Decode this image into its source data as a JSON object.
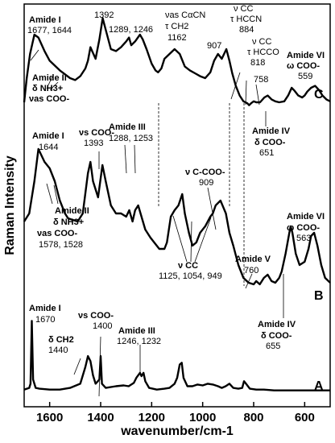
{
  "chart_data": {
    "type": "line",
    "xlabel": "wavenumber/cm-1",
    "ylabel": "Raman Intensity",
    "x_axis": {
      "reversed": true,
      "range": [
        1700,
        500
      ],
      "ticks": [
        1600,
        1400,
        1200,
        1000,
        800,
        600
      ]
    },
    "grid": false,
    "series": [
      {
        "name": "A",
        "x": [
          1700,
          1680,
          1675,
          1670,
          1665,
          1655,
          1640,
          1600,
          1560,
          1520,
          1480,
          1460,
          1450,
          1440,
          1430,
          1420,
          1405,
          1400,
          1395,
          1380,
          1340,
          1310,
          1290,
          1270,
          1260,
          1246,
          1240,
          1232,
          1225,
          1210,
          1180,
          1150,
          1130,
          1110,
          1100,
          1090,
          1082,
          1075,
          1060,
          1040,
          1020,
          1000,
          980,
          960,
          940,
          925,
          910,
          895,
          880,
          860,
          845,
          838,
          830,
          815,
          790,
          760,
          720,
          680,
          640,
          600,
          560,
          520,
          500
        ],
        "y": [
          0.08,
          0.1,
          0.15,
          0.9,
          0.2,
          0.1,
          0.09,
          0.08,
          0.08,
          0.1,
          0.15,
          0.35,
          0.48,
          0.42,
          0.25,
          0.15,
          0.2,
          0.48,
          0.15,
          0.1,
          0.12,
          0.13,
          0.12,
          0.16,
          0.22,
          0.28,
          0.24,
          0.28,
          0.18,
          0.1,
          0.08,
          0.09,
          0.1,
          0.15,
          0.22,
          0.38,
          0.4,
          0.22,
          0.12,
          0.12,
          0.14,
          0.13,
          0.15,
          0.14,
          0.12,
          0.1,
          0.12,
          0.15,
          0.1,
          0.09,
          0.1,
          0.18,
          0.15,
          0.09,
          0.08,
          0.08,
          0.07,
          0.07,
          0.07,
          0.07,
          0.07,
          0.07,
          0.07
        ]
      },
      {
        "name": "B",
        "x": [
          1700,
          1680,
          1660,
          1644,
          1620,
          1600,
          1580,
          1560,
          1540,
          1528,
          1510,
          1490,
          1470,
          1450,
          1440,
          1430,
          1410,
          1393,
          1380,
          1360,
          1340,
          1320,
          1300,
          1288,
          1275,
          1265,
          1253,
          1240,
          1225,
          1205,
          1190,
          1170,
          1150,
          1140,
          1125,
          1110,
          1095,
          1080,
          1070,
          1054,
          1040,
          1025,
          1010,
          990,
          970,
          960,
          949,
          930,
          909,
          895,
          880,
          860,
          840,
          820,
          800,
          790,
          776,
          760,
          745,
          730,
          715,
          700,
          690,
          675,
          660,
          655,
          648,
          635,
          620,
          600,
          585,
          575,
          563,
          550,
          535,
          520,
          500
        ],
        "y": [
          0.45,
          0.5,
          0.7,
          0.9,
          0.82,
          0.78,
          0.7,
          0.58,
          0.5,
          0.47,
          0.46,
          0.45,
          0.5,
          0.75,
          0.82,
          0.7,
          0.6,
          0.8,
          0.7,
          0.55,
          0.5,
          0.5,
          0.48,
          0.52,
          0.45,
          0.52,
          0.55,
          0.48,
          0.4,
          0.35,
          0.32,
          0.28,
          0.28,
          0.32,
          0.48,
          0.52,
          0.55,
          0.62,
          0.5,
          0.38,
          0.3,
          0.32,
          0.38,
          0.42,
          0.48,
          0.5,
          0.55,
          0.58,
          0.5,
          0.38,
          0.3,
          0.18,
          0.1,
          0.07,
          0.06,
          0.08,
          0.06,
          0.1,
          0.12,
          0.08,
          0.07,
          0.1,
          0.14,
          0.25,
          0.38,
          0.42,
          0.38,
          0.25,
          0.18,
          0.2,
          0.28,
          0.36,
          0.38,
          0.3,
          0.18,
          0.1,
          0.07
        ]
      },
      {
        "name": "C",
        "x": [
          1700,
          1690,
          1677,
          1660,
          1644,
          1620,
          1600,
          1560,
          1520,
          1500,
          1480,
          1460,
          1450,
          1440,
          1420,
          1405,
          1392,
          1380,
          1360,
          1340,
          1320,
          1300,
          1289,
          1280,
          1265,
          1246,
          1235,
          1220,
          1200,
          1185,
          1175,
          1162,
          1150,
          1130,
          1110,
          1090,
          1070,
          1050,
          1030,
          1010,
          990,
          970,
          955,
          940,
          925,
          907,
          895,
          884,
          870,
          855,
          840,
          825,
          818,
          810,
          800,
          790,
          775,
          758,
          745,
          730,
          715,
          700,
          680,
          665,
          651,
          640,
          625,
          610,
          600,
          590,
          575,
          559,
          545,
          530,
          515,
          500
        ],
        "y": [
          0.05,
          0.3,
          0.55,
          0.75,
          0.72,
          0.58,
          0.48,
          0.38,
          0.3,
          0.28,
          0.32,
          0.4,
          0.48,
          0.62,
          0.5,
          0.7,
          0.92,
          0.8,
          0.6,
          0.58,
          0.62,
          0.68,
          0.72,
          0.64,
          0.68,
          0.75,
          0.7,
          0.6,
          0.45,
          0.38,
          0.36,
          0.4,
          0.5,
          0.55,
          0.6,
          0.55,
          0.42,
          0.38,
          0.35,
          0.32,
          0.3,
          0.36,
          0.48,
          0.55,
          0.5,
          0.6,
          0.48,
          0.35,
          0.22,
          0.12,
          0.06,
          0.04,
          0.02,
          0.04,
          0.06,
          0.05,
          0.05,
          0.1,
          0.12,
          0.08,
          0.06,
          0.05,
          0.06,
          0.12,
          0.2,
          0.17,
          0.12,
          0.1,
          0.12,
          0.16,
          0.2,
          0.22,
          0.18,
          0.12,
          0.08,
          0.06
        ]
      }
    ],
    "annotations": {
      "C": [
        {
          "lines": [
            "Amide I",
            "1677, 1644"
          ]
        },
        {
          "lines": [
            "1392"
          ]
        },
        {
          "lines": [
            "1289, 1246"
          ]
        },
        {
          "lines": [
            "νas CαCN",
            "τ CH2",
            "1162"
          ]
        },
        {
          "lines": [
            "907"
          ]
        },
        {
          "lines": [
            "ν CC",
            "τ HCCN",
            "884"
          ]
        },
        {
          "lines": [
            "ν CC",
            "τ HCCO",
            "818"
          ]
        },
        {
          "lines": [
            "758"
          ]
        },
        {
          "lines": [
            "Amide VI",
            "ω COO-",
            "559"
          ]
        },
        {
          "lines": [
            "Amide II",
            "δ NH3+",
            "νas COO-"
          ]
        },
        {
          "lines": [
            "Amide IV",
            "δ COO-",
            "651"
          ]
        }
      ],
      "B": [
        {
          "lines": [
            "Amide III",
            "1288, 1253"
          ]
        },
        {
          "lines": [
            "νs COO-",
            "1393"
          ]
        },
        {
          "lines": [
            "Amide I",
            "1644"
          ]
        },
        {
          "lines": [
            "ν C-COO-",
            "909"
          ]
        },
        {
          "lines": [
            "Amide II",
            "δ NH3+",
            "νas COO-",
            "1578, 1528"
          ]
        },
        {
          "lines": [
            "ν CC",
            "1125, 1054, 949"
          ]
        },
        {
          "lines": [
            "Amide V",
            "760"
          ]
        },
        {
          "lines": [
            "Amide VI",
            "ω COO-",
            "563"
          ]
        },
        {
          "lines": [
            "Amide IV",
            "δ COO-",
            "655"
          ]
        }
      ],
      "A": [
        {
          "lines": [
            "Amide I",
            "1670"
          ]
        },
        {
          "lines": [
            "νs COO-",
            "1400"
          ]
        },
        {
          "lines": [
            "δ CH2",
            "1440"
          ]
        },
        {
          "lines": [
            "Amide III",
            "1246, 1232"
          ]
        }
      ]
    }
  }
}
